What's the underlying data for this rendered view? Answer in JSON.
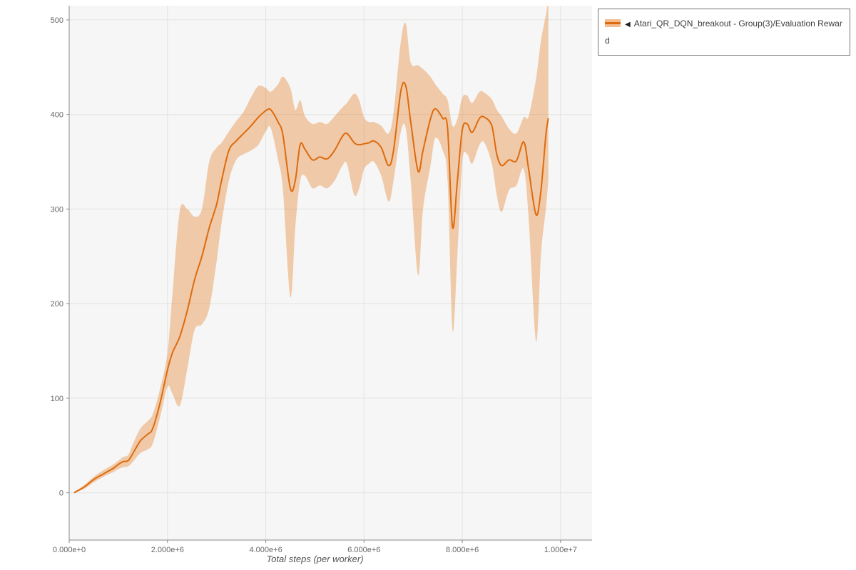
{
  "legend": {
    "collapse_icon": "◀",
    "series_label": "Atari_QR_DQN_breakout - Group(3)/Evaluation Reward"
  },
  "chart_data": {
    "type": "line",
    "title": "",
    "xlabel": "Total steps (per worker)",
    "ylabel": "",
    "grid": true,
    "legend_position": "top-right",
    "xlim": [
      0,
      10640000
    ],
    "ylim": [
      -50,
      515
    ],
    "x_tick_values": [
      0,
      2000000,
      4000000,
      6000000,
      8000000,
      10000000
    ],
    "x_tick_labels": [
      "0.000e+0",
      "2.000e+6",
      "4.000e+6",
      "6.000e+6",
      "8.000e+6",
      "1.000e+7"
    ],
    "y_ticks": [
      0,
      100,
      200,
      300,
      400,
      500
    ],
    "colors": {
      "line": "#dd6b0d",
      "band": "rgba(232,130,42,0.38)",
      "grid": "#e1e3e1",
      "plot_background": "#f5f6f5",
      "axis": "#888888",
      "tick_text": "#666666",
      "axis_label_text": "#555555"
    },
    "series": [
      {
        "name": "Atari_QR_DQN_breakout - Group(3)/Evaluation Reward",
        "x": [
          100000,
          300000,
          500000,
          700000,
          900000,
          1000000,
          1100000,
          1200000,
          1300000,
          1450000,
          1600000,
          1700000,
          1850000,
          2000000,
          2100000,
          2250000,
          2400000,
          2550000,
          2700000,
          2850000,
          3000000,
          3100000,
          3250000,
          3400000,
          3550000,
          3700000,
          3850000,
          4000000,
          4100000,
          4250000,
          4350000,
          4500000,
          4600000,
          4700000,
          4800000,
          4950000,
          5100000,
          5250000,
          5400000,
          5550000,
          5650000,
          5800000,
          5900000,
          6000000,
          6100000,
          6200000,
          6350000,
          6500000,
          6600000,
          6750000,
          6850000,
          6950000,
          7100000,
          7200000,
          7350000,
          7450000,
          7600000,
          7700000,
          7800000,
          7900000,
          8000000,
          8100000,
          8200000,
          8350000,
          8450000,
          8600000,
          8700000,
          8800000,
          8950000,
          9100000,
          9250000,
          9350000,
          9500000,
          9600000,
          9700000,
          9750000
        ],
        "mean": [
          0,
          6,
          14,
          20,
          26,
          30,
          33,
          34,
          42,
          55,
          62,
          68,
          95,
          130,
          148,
          165,
          192,
          225,
          250,
          280,
          305,
          330,
          362,
          372,
          380,
          388,
          397,
          404,
          405,
          392,
          378,
          322,
          330,
          368,
          363,
          352,
          355,
          353,
          362,
          376,
          380,
          370,
          368,
          369,
          370,
          372,
          365,
          346,
          362,
          425,
          430,
          392,
          340,
          362,
          395,
          406,
          396,
          385,
          281,
          330,
          384,
          390,
          381,
          396,
          397,
          388,
          358,
          346,
          352,
          351,
          371,
          342,
          294,
          320,
          378,
          396
        ],
        "lower": [
          0,
          4,
          11,
          17,
          22,
          25,
          27,
          28,
          33,
          42,
          46,
          52,
          80,
          112,
          105,
          92,
          130,
          172,
          178,
          195,
          245,
          285,
          330,
          352,
          358,
          362,
          368,
          382,
          386,
          352,
          320,
          207,
          280,
          330,
          335,
          322,
          325,
          322,
          330,
          345,
          348,
          315,
          322,
          342,
          348,
          350,
          335,
          308,
          330,
          382,
          385,
          330,
          230,
          300,
          345,
          375,
          362,
          330,
          172,
          252,
          350,
          358,
          348,
          368,
          370,
          348,
          315,
          297,
          320,
          325,
          342,
          290,
          160,
          252,
          300,
          330
        ],
        "upper": [
          1,
          8,
          17,
          24,
          30,
          34,
          38,
          40,
          52,
          68,
          76,
          83,
          110,
          148,
          210,
          298,
          300,
          292,
          300,
          350,
          365,
          370,
          382,
          393,
          403,
          418,
          430,
          428,
          424,
          432,
          440,
          428,
          405,
          415,
          398,
          390,
          392,
          390,
          398,
          407,
          412,
          422,
          415,
          397,
          392,
          392,
          388,
          380,
          402,
          478,
          496,
          455,
          452,
          448,
          440,
          432,
          422,
          415,
          388,
          395,
          418,
          420,
          412,
          424,
          423,
          416,
          405,
          398,
          385,
          380,
          397,
          398,
          438,
          478,
          505,
          522
        ]
      }
    ]
  }
}
